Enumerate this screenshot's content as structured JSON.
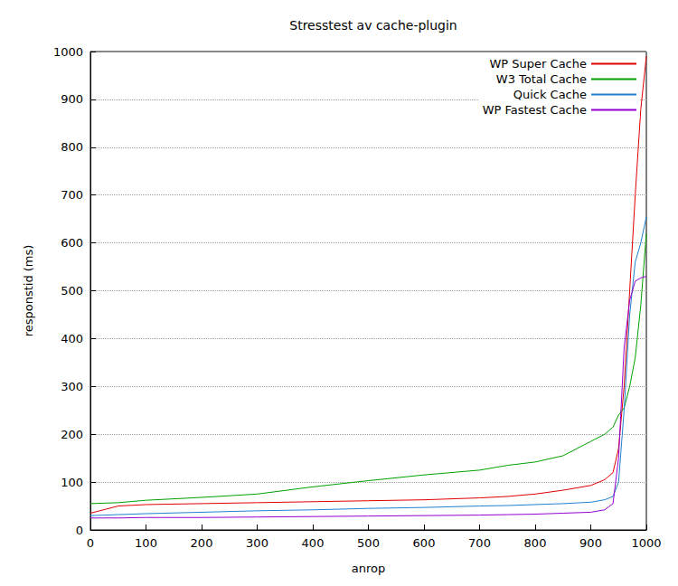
{
  "chart_data": {
    "type": "line",
    "title": "Stresstest av cache-plugin",
    "x_label": "anrop",
    "y_label": "responstid (ms)",
    "x": [
      0,
      50,
      100,
      200,
      300,
      400,
      500,
      600,
      700,
      750,
      800,
      850,
      900,
      925,
      940,
      950,
      960,
      970,
      980,
      990,
      1000
    ],
    "series": [
      {
        "name": "WP Super Cache",
        "color": "#e00000",
        "values": [
          35,
          50,
          53,
          55,
          57,
          59,
          61,
          63,
          67,
          70,
          75,
          83,
          93,
          105,
          120,
          170,
          300,
          500,
          700,
          880,
          990
        ]
      },
      {
        "name": "W3 Total Cache",
        "color": "#00a000",
        "values": [
          55,
          57,
          62,
          68,
          75,
          90,
          103,
          115,
          125,
          135,
          142,
          155,
          185,
          200,
          215,
          240,
          255,
          300,
          360,
          470,
          620
        ]
      },
      {
        "name": "Quick Cache",
        "color": "#2080d0",
        "values": [
          30,
          32,
          34,
          37,
          40,
          42,
          45,
          47,
          50,
          51,
          53,
          55,
          58,
          63,
          70,
          100,
          250,
          450,
          560,
          600,
          655
        ]
      },
      {
        "name": "WP Fastest Cache",
        "color": "#9400d3",
        "values": [
          25,
          25,
          26,
          26,
          27,
          28,
          29,
          30,
          31,
          32,
          33,
          35,
          37,
          42,
          55,
          150,
          380,
          480,
          520,
          527,
          530
        ]
      }
    ],
    "xlim": [
      0,
      1000
    ],
    "xticks": [
      0,
      100,
      200,
      300,
      400,
      500,
      600,
      700,
      800,
      900,
      1000
    ],
    "ylim": [
      0,
      1000
    ],
    "yticks": [
      0,
      100,
      200,
      300,
      400,
      500,
      600,
      700,
      800,
      900,
      1000
    ],
    "grid": true,
    "legend": "upper right"
  }
}
